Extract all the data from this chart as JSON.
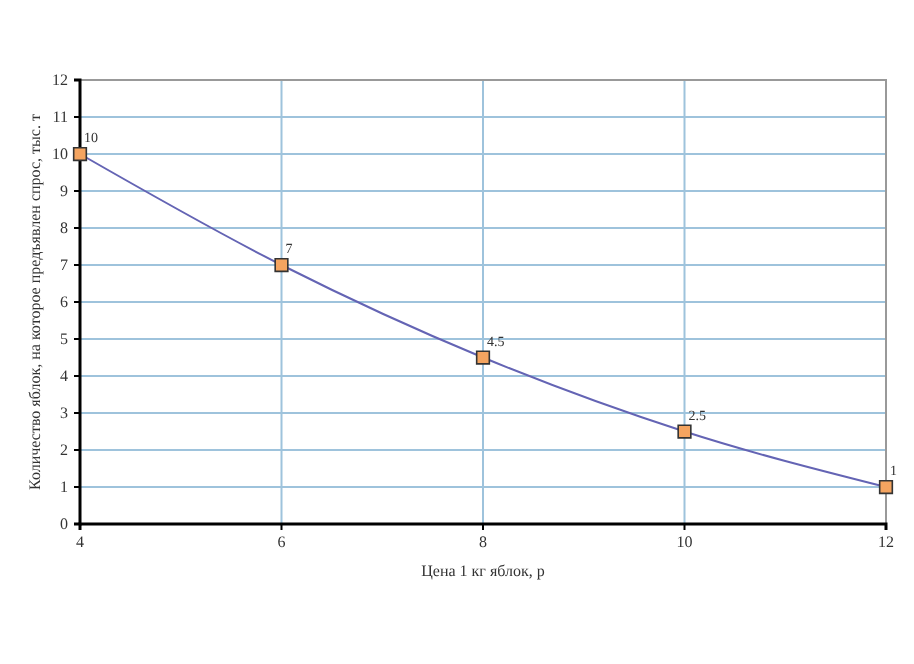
{
  "chart_data": {
    "type": "line",
    "xlabel": "Цена 1 кг яблок, р",
    "ylabel": "Количество яблок, на которое предъявлен спрос, тыс. т",
    "x": [
      4,
      6,
      8,
      10,
      12
    ],
    "series": [
      {
        "color": "#6464b4",
        "values": [
          10,
          7,
          4.5,
          2.5,
          1
        ]
      }
    ],
    "xlim": [
      4,
      12
    ],
    "xticks": [
      4,
      6,
      8,
      10,
      12
    ],
    "ylim": [
      0,
      12
    ],
    "yticks": [
      0,
      1,
      2,
      3,
      4,
      5,
      6,
      7,
      8,
      9,
      10,
      11,
      12
    ],
    "grid": true,
    "marker": "square",
    "line_style": "solid",
    "data_labels": true
  }
}
